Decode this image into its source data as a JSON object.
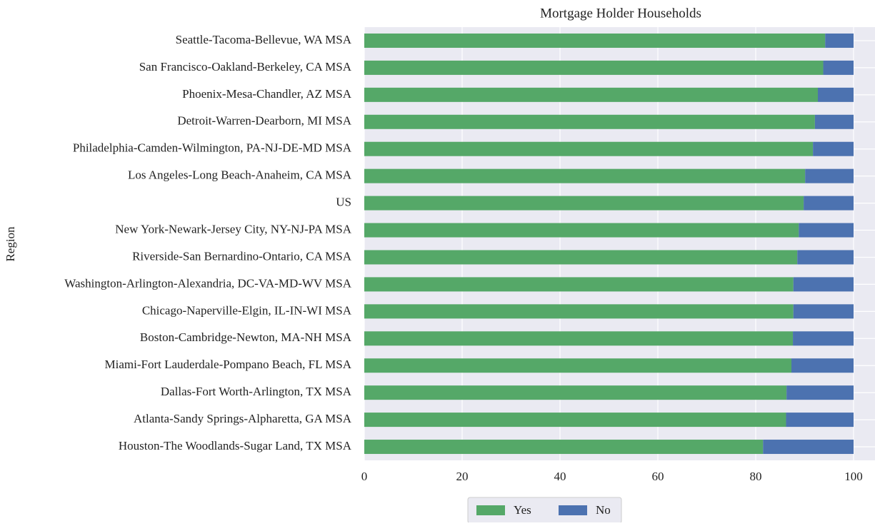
{
  "chart_data": {
    "type": "barh_stacked",
    "title": "Mortgage Holder Households",
    "ylabel": "Region",
    "categories": [
      "Seattle-Tacoma-Bellevue, WA MSA",
      "San Francisco-Oakland-Berkeley, CA MSA",
      "Phoenix-Mesa-Chandler, AZ MSA",
      "Detroit-Warren-Dearborn, MI MSA",
      "Philadelphia-Camden-Wilmington, PA-NJ-DE-MD MSA",
      "Los Angeles-Long Beach-Anaheim, CA MSA",
      "US",
      "New York-Newark-Jersey City, NY-NJ-PA MSA",
      "Riverside-San Bernardino-Ontario, CA MSA",
      "Washington-Arlington-Alexandria, DC-VA-MD-WV MSA",
      "Chicago-Naperville-Elgin, IL-IN-WI MSA",
      "Boston-Cambridge-Newton, MA-NH MSA",
      "Miami-Fort Lauderdale-Pompano Beach, FL MSA",
      "Dallas-Fort Worth-Arlington, TX MSA",
      "Atlanta-Sandy Springs-Alpharetta, GA MSA",
      "Houston-The Woodlands-Sugar Land, TX MSA"
    ],
    "series": [
      {
        "name": "Yes",
        "color": "#55a868",
        "values": [
          94.2,
          93.8,
          92.7,
          92.1,
          91.7,
          90.1,
          89.8,
          88.8,
          88.5,
          87.7,
          87.7,
          87.6,
          87.3,
          86.3,
          86.2,
          81.5
        ]
      },
      {
        "name": "No",
        "color": "#4c72b0",
        "values": [
          5.8,
          6.2,
          7.3,
          7.9,
          8.3,
          9.9,
          10.2,
          11.2,
          11.5,
          12.3,
          12.3,
          12.4,
          12.7,
          13.7,
          13.8,
          18.5
        ]
      }
    ],
    "xlim": [
      0,
      105
    ],
    "xticks": [
      0,
      20,
      40,
      60,
      80,
      100
    ],
    "grid": true,
    "legend": "bottom"
  }
}
